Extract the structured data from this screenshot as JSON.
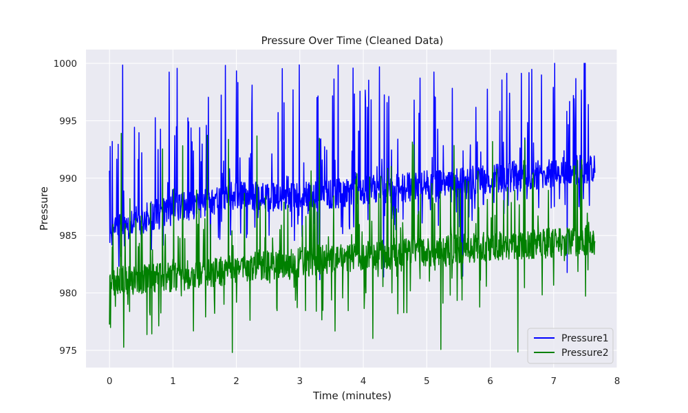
{
  "chart_data": {
    "type": "line",
    "title": "Pressure Over Time (Cleaned Data)",
    "xlabel": "Time (minutes)",
    "ylabel": "Pressure",
    "xlim": [
      -0.37,
      8.0
    ],
    "ylim": [
      973.5,
      1001.2
    ],
    "xticks": [
      0,
      1,
      2,
      3,
      4,
      5,
      6,
      7,
      8
    ],
    "yticks": [
      975,
      980,
      985,
      990,
      995,
      1000
    ],
    "grid": true,
    "legend": "bottom-right",
    "colors": {
      "plot_bg": "#eaeaf2",
      "grid": "#ffffff"
    },
    "series": [
      {
        "name": "Pressure1",
        "color": "#0000ff",
        "x_range": [
          0,
          7.65
        ],
        "approx_baseline": [
          [
            0,
            985
          ],
          [
            1,
            987
          ],
          [
            2,
            988
          ],
          [
            3,
            988
          ],
          [
            4,
            988.5
          ],
          [
            5,
            989
          ],
          [
            6,
            989.5
          ],
          [
            7,
            990
          ],
          [
            7.65,
            990.5
          ]
        ],
        "spike_ceiling": 1000,
        "spike_floor": 981
      },
      {
        "name": "Pressure2",
        "color": "#008000",
        "x_range": [
          0,
          7.65
        ],
        "approx_baseline": [
          [
            0,
            980.5
          ],
          [
            1,
            981
          ],
          [
            2,
            981.7
          ],
          [
            3,
            982.3
          ],
          [
            4,
            982.8
          ],
          [
            5,
            983.2
          ],
          [
            6,
            983.6
          ],
          [
            7,
            984
          ],
          [
            7.65,
            984.2
          ]
        ],
        "spike_ceiling": 994,
        "spike_floor": 974.7
      }
    ]
  }
}
